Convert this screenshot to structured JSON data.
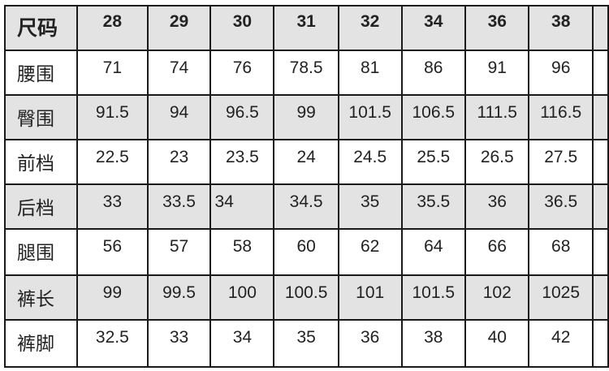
{
  "size_chart": {
    "header": {
      "label": "尺码",
      "sizes": [
        "28",
        "29",
        "30",
        "31",
        "32",
        "34",
        "36",
        "38"
      ]
    },
    "rows": [
      {
        "label": "腰围",
        "values": [
          "71",
          "74",
          "76",
          "78.5",
          "81",
          "86",
          "91",
          "96"
        ]
      },
      {
        "label": "臀围",
        "values": [
          "91.5",
          "94",
          "96.5",
          "99",
          "101.5",
          "106.5",
          "111.5",
          "116.5"
        ]
      },
      {
        "label": "前档",
        "values": [
          "22.5",
          "23",
          "23.5",
          "24",
          "24.5",
          "25.5",
          "26.5",
          "27.5"
        ]
      },
      {
        "label": "后档",
        "values": [
          "33",
          "33.5",
          "34",
          "34.5",
          "35",
          "35.5",
          "36",
          "36.5"
        ]
      },
      {
        "label": "腿围",
        "values": [
          "56",
          "57",
          "58",
          "60",
          "62",
          "64",
          "66",
          "68"
        ]
      },
      {
        "label": "裤长",
        "values": [
          "99",
          "99.5",
          "100",
          "100.5",
          "101",
          "101.5",
          "102",
          "1025"
        ]
      },
      {
        "label": "裤脚",
        "values": [
          "32.5",
          "33",
          "34",
          "35",
          "36",
          "38",
          "40",
          "42"
        ]
      }
    ],
    "colors": {
      "header_bg": "#e3e3e3",
      "alt_row_bg": "#e3e3e3",
      "border": "#1a1a1a"
    }
  }
}
